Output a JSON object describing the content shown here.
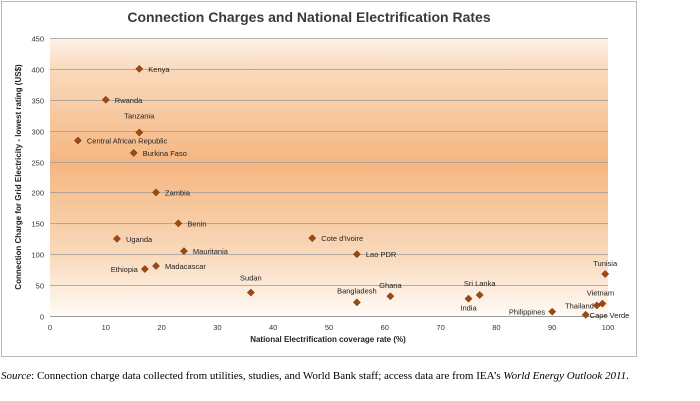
{
  "chart_data": {
    "type": "scatter",
    "title": "Connection Charges and National Electrification Rates",
    "xlabel": "National Electrification coverage rate (%)",
    "ylabel": "Connection Charge for Grid Electricity - lowest rating (US$)",
    "xlim": [
      0,
      100
    ],
    "ylim": [
      0,
      450
    ],
    "xticks": [
      "0",
      "10",
      "20",
      "30",
      "40",
      "50",
      "60",
      "70",
      "80",
      "90",
      "100"
    ],
    "yticks": [
      "0",
      "50",
      "100",
      "150",
      "200",
      "250",
      "300",
      "350",
      "400",
      "450"
    ],
    "grid": "horizontal",
    "legend": "none",
    "points": [
      {
        "label": "Kenya",
        "x": 16,
        "y": 400
      },
      {
        "label": "Rwanda",
        "x": 10,
        "y": 350
      },
      {
        "label": "Tanzania",
        "x": 16,
        "y": 297
      },
      {
        "label": "Central African Republic",
        "x": 5,
        "y": 284
      },
      {
        "label": "Burkina Faso",
        "x": 15,
        "y": 264
      },
      {
        "label": "Zambia",
        "x": 19,
        "y": 200
      },
      {
        "label": "Benin",
        "x": 23,
        "y": 150
      },
      {
        "label": "Uganda",
        "x": 12,
        "y": 125
      },
      {
        "label": "Cote d'Ivoire",
        "x": 47,
        "y": 126
      },
      {
        "label": "Mauritania",
        "x": 24,
        "y": 105
      },
      {
        "label": "Lao PDR",
        "x": 55,
        "y": 100
      },
      {
        "label": "Madacascar",
        "x": 19,
        "y": 81
      },
      {
        "label": "Ethiopia",
        "x": 17,
        "y": 76
      },
      {
        "label": "Sudan",
        "x": 36,
        "y": 38
      },
      {
        "label": "Bangladesh",
        "x": 55,
        "y": 22
      },
      {
        "label": "Ghana",
        "x": 61,
        "y": 32
      },
      {
        "label": "Sri Lanka",
        "x": 77,
        "y": 34
      },
      {
        "label": "India",
        "x": 75,
        "y": 28
      },
      {
        "label": "Philippines",
        "x": 90,
        "y": 7
      },
      {
        "label": "Tunisia",
        "x": 99.5,
        "y": 68
      },
      {
        "label": "Vietnam",
        "x": 99,
        "y": 20
      },
      {
        "label": "Thailand",
        "x": 98,
        "y": 17
      },
      {
        "label": "Cape Verde",
        "x": 96,
        "y": 2
      }
    ],
    "marker_color": "#9c4a12"
  },
  "caption": {
    "source_word": "Source",
    "text": ": Connection charge data collected from utilities, studies, and World Bank staff; access data are from IEA’s ",
    "report_title": "World Energy Outlook 2011",
    "end": "."
  }
}
